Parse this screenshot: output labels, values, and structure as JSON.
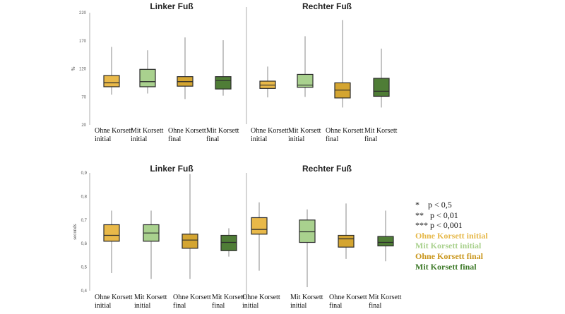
{
  "chart_data": [
    {
      "type": "box",
      "ylabel": "%",
      "yticks": [
        "20",
        "70",
        "120",
        "170",
        "220"
      ],
      "ylim": [
        20,
        220
      ],
      "panels": [
        {
          "title": "Linker Fuß",
          "boxes": [
            {
              "label": [
                "Ohne Korsett",
                "initial"
              ],
              "color": "#e9b949",
              "min": 74,
              "q1": 88,
              "median": 95,
              "q3": 108,
              "max": 159
            },
            {
              "label": [
                "Mit Korsett",
                "initial"
              ],
              "color": "#a9d18e",
              "min": 76,
              "q1": 88,
              "median": 97,
              "q3": 119,
              "max": 153
            },
            {
              "label": [
                "Ohne Korsett",
                "final"
              ],
              "color": "#d4a531",
              "min": 66,
              "q1": 89,
              "median": 97,
              "q3": 106,
              "max": 176
            },
            {
              "label": [
                "Mit Korsett",
                "final"
              ],
              "color": "#4f7d36",
              "min": 72,
              "q1": 84,
              "median": 99,
              "q3": 106,
              "max": 171
            }
          ]
        },
        {
          "title": "Rechter Fuß",
          "boxes": [
            {
              "label": [
                "Ohne Korsett",
                "initial"
              ],
              "color": "#e9b949",
              "min": 69,
              "q1": 85,
              "median": 91,
              "q3": 98,
              "max": 124
            },
            {
              "label": [
                "Mit Korsett",
                "initial"
              ],
              "color": "#a9d18e",
              "min": 70,
              "q1": 87,
              "median": 91,
              "q3": 110,
              "max": 178
            },
            {
              "label": [
                "Ohne Korsett",
                "final"
              ],
              "color": "#d4a531",
              "min": 51,
              "q1": 68,
              "median": 82,
              "q3": 95,
              "max": 207
            },
            {
              "label": [
                "Mit Korsett",
                "final"
              ],
              "color": "#4f7d36",
              "min": 51,
              "q1": 71,
              "median": 80,
              "q3": 103,
              "max": 156
            }
          ]
        }
      ]
    },
    {
      "type": "box",
      "ylabel": "seconds",
      "yticks": [
        "0,4",
        "0,5",
        "0,6",
        "0,7",
        "0,8",
        "0,9"
      ],
      "ylim": [
        0.4,
        0.9
      ],
      "panels": [
        {
          "title": "Linker Fuß",
          "boxes": [
            {
              "label": [
                "Ohne Korsett",
                "initial"
              ],
              "color": "#e9b949",
              "min": 0.475,
              "q1": 0.61,
              "median": 0.635,
              "q3": 0.68,
              "max": 0.74
            },
            {
              "label": [
                "Mit Korsett",
                "initial"
              ],
              "color": "#a9d18e",
              "min": 0.45,
              "q1": 0.61,
              "median": 0.645,
              "q3": 0.68,
              "max": 0.74
            },
            {
              "label": [
                "Ohne Korsett",
                "final"
              ],
              "color": "#d4a531",
              "min": 0.45,
              "q1": 0.58,
              "median": 0.615,
              "q3": 0.64,
              "max": 0.895
            },
            {
              "label": [
                "Mit Korsett",
                "final"
              ],
              "color": "#4f7d36",
              "min": 0.545,
              "q1": 0.57,
              "median": 0.605,
              "q3": 0.635,
              "max": 0.665
            }
          ]
        },
        {
          "title": "Rechter Fuß",
          "boxes": [
            {
              "label": [
                "Ohne Korsett",
                "initial"
              ],
              "color": "#e9b949",
              "min": 0.485,
              "q1": 0.64,
              "median": 0.66,
              "q3": 0.71,
              "max": 0.775
            },
            {
              "label": [
                "Mit Korsett",
                "initial"
              ],
              "color": "#a9d18e",
              "min": 0.415,
              "q1": 0.605,
              "median": 0.65,
              "q3": 0.7,
              "max": 0.745
            },
            {
              "label": [
                "Ohne Korsett",
                "final"
              ],
              "color": "#d4a531",
              "min": 0.535,
              "q1": 0.585,
              "median": 0.62,
              "q3": 0.635,
              "max": 0.77
            },
            {
              "label": [
                "Mit Korsett",
                "final"
              ],
              "color": "#4f7d36",
              "min": 0.525,
              "q1": 0.59,
              "median": 0.605,
              "q3": 0.63,
              "max": 0.74
            }
          ]
        }
      ]
    }
  ],
  "legend": {
    "significance": [
      {
        "stars": "*",
        "text": "p < 0,5"
      },
      {
        "stars": "**",
        "text": "p < 0,01"
      },
      {
        "stars": "***",
        "text": "p < 0,001"
      }
    ],
    "entries": [
      {
        "label": "Ohne Korsett initial",
        "color": "#e6b84a"
      },
      {
        "label": "Mit Korsett initial",
        "color": "#a9d18e"
      },
      {
        "label": "Ohne Korsett final",
        "color": "#c9961c"
      },
      {
        "label": "Mit Korsett final",
        "color": "#3e7a2a"
      }
    ]
  }
}
